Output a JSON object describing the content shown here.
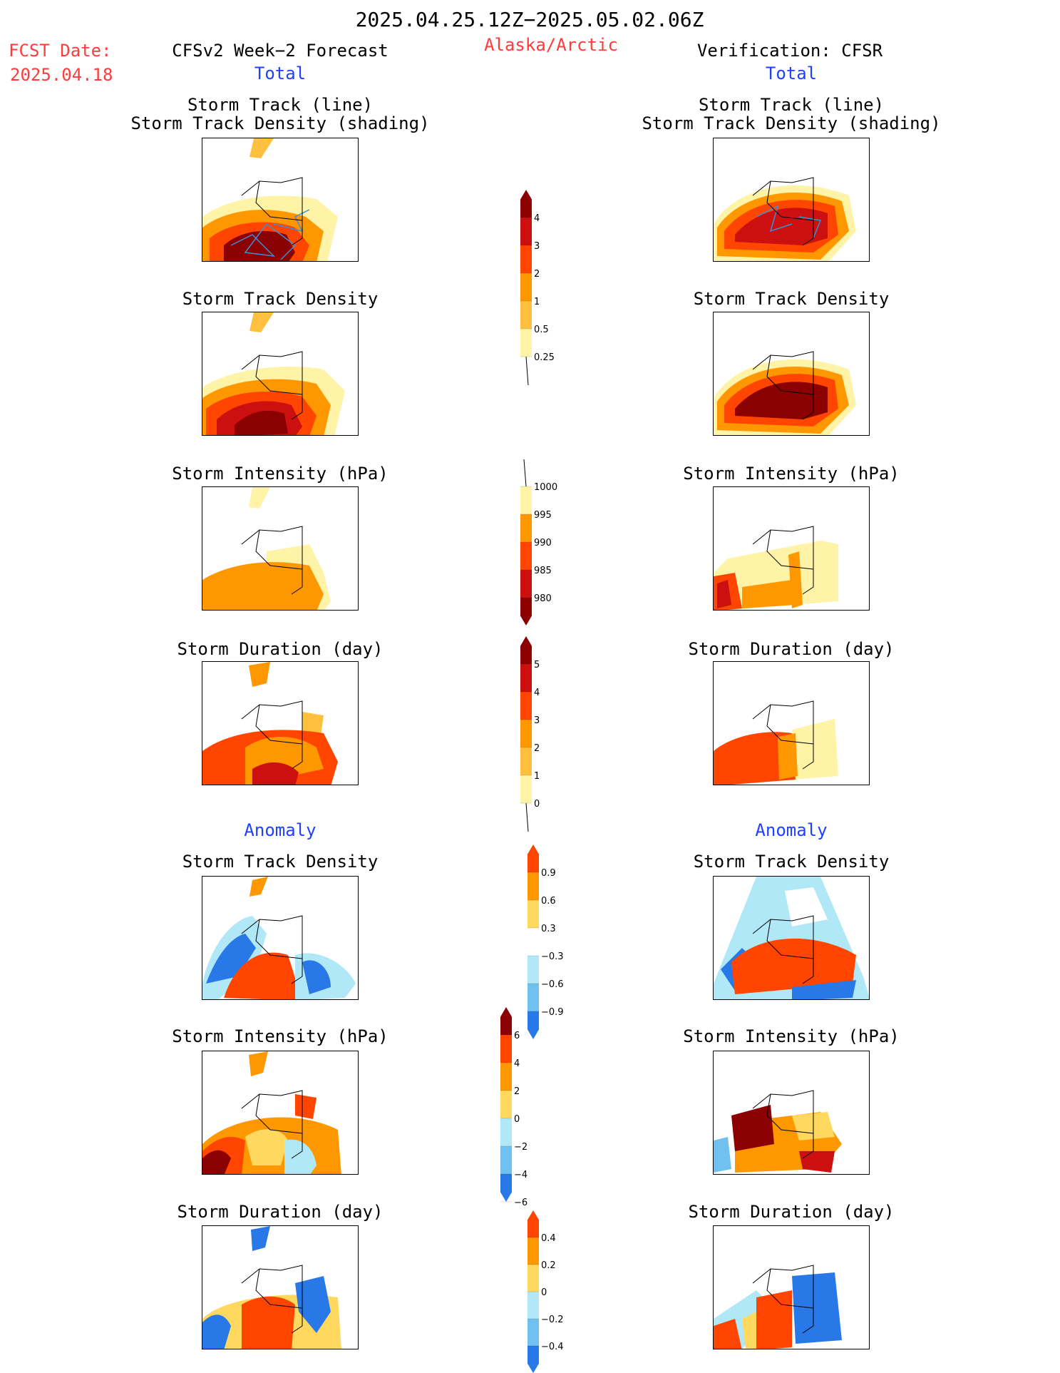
{
  "header": {
    "period": "2025.04.25.12Z−2025.05.02.06Z",
    "fcst_label": "FCST Date:",
    "fcst_date": "2025.04.18",
    "forecast_title": "CFSv2 Week−2 Forecast",
    "region": "Alaska/Arctic",
    "verification_title": "Verification: CFSR"
  },
  "sections": {
    "total": "Total",
    "anomaly": "Anomaly"
  },
  "panels": {
    "track_line": "Storm Track (line)",
    "track_density_shading": "Storm Track Density (shading)",
    "track_density": "Storm Track Density",
    "intensity": "Storm Intensity (hPa)",
    "duration": "Storm Duration (day)"
  },
  "colorbars": {
    "density_total": {
      "labels": [
        "4",
        "3",
        "2",
        "1",
        "0.5",
        "0.25"
      ],
      "colors": [
        "#8b0000",
        "#cc1010",
        "#ff4500",
        "#ff9800",
        "#ffc040",
        "#fff3a8"
      ]
    },
    "intensity_total": {
      "labels": [
        "1000",
        "995",
        "990",
        "985",
        "980"
      ],
      "colors": [
        "#fff3a8",
        "#ff9800",
        "#ff4500",
        "#cc1010",
        "#8b0000"
      ]
    },
    "duration_total": {
      "labels": [
        "5",
        "4",
        "3",
        "2",
        "1",
        "0"
      ],
      "colors": [
        "#8b0000",
        "#cc1010",
        "#ff4500",
        "#ff9800",
        "#ffc040",
        "#fff3a8"
      ]
    },
    "density_anom": {
      "labels": [
        "0.9",
        "0.6",
        "0.3",
        "−0.3",
        "−0.6",
        "−0.9"
      ],
      "colors": [
        "#ff4500",
        "#ff9800",
        "#ffd860",
        "#ffffff",
        "#b0e8f8",
        "#70c0f0",
        "#2878e8"
      ]
    },
    "intensity_anom": {
      "labels": [
        "6",
        "4",
        "2",
        "0",
        "−2",
        "−4",
        "−6"
      ],
      "colors": [
        "#8b0000",
        "#ff4500",
        "#ff9800",
        "#ffd860",
        "#b0e8f8",
        "#70c0f0",
        "#2878e8"
      ]
    },
    "duration_anom": {
      "labels": [
        "0.4",
        "0.2",
        "0",
        "−0.2",
        "−0.4"
      ],
      "colors": [
        "#ff4500",
        "#ff9800",
        "#ffd860",
        "#b0e8f8",
        "#70c0f0",
        "#2878e8"
      ]
    }
  }
}
